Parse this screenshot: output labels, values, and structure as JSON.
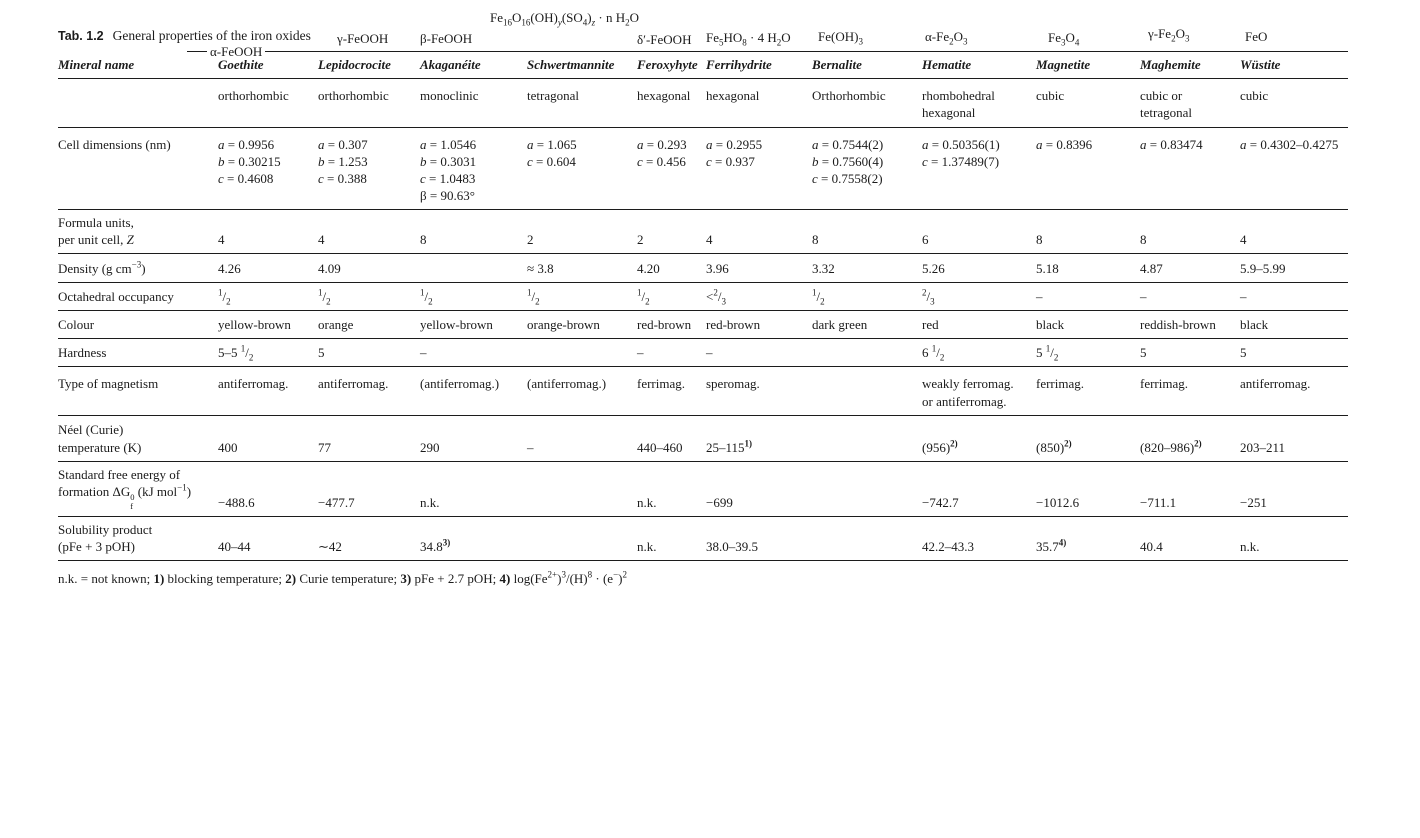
{
  "title": {
    "tab_label": "Tab. 1.2",
    "tab_title": "General properties of the iron oxides"
  },
  "header": {
    "top_formula": "Fe<sub>16</sub>O<sub>16</sub>(OH)<sub><i>y</i></sub>(SO<sub>4</sub>)<sub><i>z</i></sub> · n H<sub>2</sub>O",
    "rule_formula": "α-FeOOH",
    "formulas": [
      "γ-FeOOH",
      "β-FeOOH",
      "δ′-FeOOH",
      "Fe<sub>5</sub>HO<sub>8</sub> · 4 H<sub>2</sub>O",
      "Fe(OH)<sub>3</sub>",
      "α-Fe<sub>2</sub>O<sub>3</sub>",
      "Fe<sub>3</sub>O<sub>4</sub>",
      "γ-Fe<sub>2</sub>O<sub>3</sub>",
      "FeO"
    ]
  },
  "table": {
    "header_row": {
      "label": "Mineral name",
      "minerals": [
        "Goethite",
        "Lepidocrocite",
        "Akaganéite",
        "Schwertmannite",
        "Feroxyhyte",
        "Ferrihydrite",
        "Bernalite",
        "Hematite",
        "Magnetite",
        "Maghemite",
        "Wüstite"
      ]
    },
    "rows": [
      {
        "id": "crystal-system",
        "label": "",
        "values": [
          "orthorhombic",
          "orthorhombic",
          "monoclinic",
          "tetragonal",
          "hexagonal",
          "hexagonal",
          "Orthorhombic",
          "rhombohedral<br>hexagonal",
          "cubic",
          "cubic or<br>tetragonal",
          "cubic"
        ]
      },
      {
        "id": "cell-dimensions",
        "label": "Cell dimensions (nm)",
        "values": [
          "<i>a</i> = 0.9956<br><i>b</i> = 0.30215<br><i>c</i> = 0.4608",
          "<i>a</i> = 0.307<br><i>b</i> = 1.253<br><i>c</i> = 0.388",
          "<i>a</i> = 1.0546<br><i>b</i> = 0.3031<br><i>c</i> = 1.0483<br>β = 90.63°",
          "<i>a</i> = 1.065<br><i>c</i> = 0.604",
          "<i>a</i> = 0.293<br><i>c</i> = 0.456",
          "<i>a</i> = 0.2955<br><i>c</i> = 0.937",
          "<i>a</i> = 0.7544(2)<br><i>b</i> = 0.7560(4)<br><i>c</i> = 0.7558(2)",
          "<i>a</i> = 0.50356(1)<br><i>c</i> = 1.37489(7)",
          "<i>a</i> = 0.8396",
          "<i>a</i> = 0.83474",
          "<i>a</i> = 0.4302–0.4275"
        ]
      },
      {
        "id": "formula-units",
        "label": "Formula units,<br>per unit cell, <i>Z</i>",
        "values": [
          "4",
          "4",
          "8",
          "2",
          "2",
          "4",
          "8",
          "6",
          "8",
          "8",
          "4"
        ]
      },
      {
        "id": "density",
        "label": "Density (g cm<sup>−3</sup>)",
        "values": [
          "4.26",
          "4.09",
          "",
          "≈ 3.8",
          "4.20",
          "3.96",
          "3.32",
          "5.26",
          "5.18",
          "4.87",
          "5.9–5.99"
        ]
      },
      {
        "id": "octahedral-occupancy",
        "label": "Octahedral occupancy",
        "values": [
          "<sup>1</sup>/<sub>2</sub>",
          "<sup>1</sup>/<sub>2</sub>",
          "<sup>1</sup>/<sub>2</sub>",
          "<sup>1</sup>/<sub>2</sub>",
          "<sup>1</sup>/<sub>2</sub>",
          "&lt;<sup>2</sup>/<sub>3</sub>",
          "<sup>1</sup>/<sub>2</sub>",
          "<sup>2</sup>/<sub>3</sub>",
          "–",
          "–",
          "–"
        ]
      },
      {
        "id": "colour",
        "label": "Colour",
        "values": [
          "yellow-brown",
          "orange",
          "yellow-brown",
          "orange-brown",
          "red-brown",
          "red-brown",
          "dark green",
          "red",
          "black",
          "reddish-brown",
          "black"
        ]
      },
      {
        "id": "hardness",
        "label": "Hardness",
        "values": [
          "5–5 <sup>1</sup>/<sub>2</sub>",
          "5",
          "–",
          "",
          "–",
          "–",
          "",
          "6 <sup>1</sup>/<sub>2</sub>",
          "5 <sup>1</sup>/<sub>2</sub>",
          "5",
          "5"
        ]
      },
      {
        "id": "magnetism",
        "label": "Type of magnetism",
        "values": [
          "antiferromag.",
          "antiferromag.",
          "(antiferromag.)",
          "(antiferromag.)",
          "ferrimag.",
          "speromag.",
          "",
          "weakly ferromag.<br>or antiferromag.",
          "ferrimag.",
          "ferrimag.",
          "antiferromag."
        ]
      },
      {
        "id": "neel-temperature",
        "label": "Néel (Curie)<br>temperature (K)",
        "values": [
          "400",
          "77",
          "290",
          "–",
          "440–460",
          "25–115<sup><b>1)</b></sup>",
          "",
          "(956)<sup><b>2)</b></sup>",
          "(850)<sup><b>2)</b></sup>",
          "(820–986)<sup><b>2)</b></sup>",
          "203–211"
        ]
      },
      {
        "id": "free-energy",
        "label": "Standard free energy of<br>formation ΔG<span class=\"stack\"><span>0</span><span>f</span></span> (kJ mol<sup>−1</sup>)",
        "values": [
          "−488.6",
          "−477.7",
          "n.k.",
          "",
          "n.k.",
          "−699",
          "",
          "−742.7",
          "−1012.6",
          "−711.1",
          "−251"
        ]
      },
      {
        "id": "solubility",
        "label": "Solubility product<br>(pFe + 3 pOH)",
        "values": [
          "40–44",
          "∼42",
          "34.8<sup><b>3)</b></sup>",
          "",
          "n.k.",
          "38.0–39.5",
          "",
          "42.2–43.3",
          "35.7<sup><b>4)</b></sup>",
          "40.4",
          "n.k."
        ]
      }
    ]
  },
  "footnote": "n.k. = not known; <b>1)</b> blocking temperature; <b>2)</b> Curie temperature; <b>3)</b> pFe + 2.7 pOH; <b>4)</b> log(Fe<sup>2+</sup>)<sup>3</sup>/(H)<sup>8</sup> · (e<sup>−</sup>)<sup>2</sup>"
}
